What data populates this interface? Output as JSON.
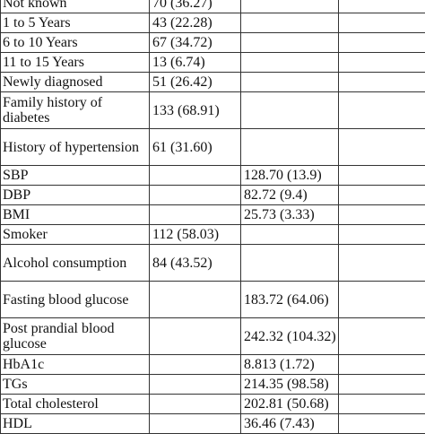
{
  "table": {
    "rows": [
      {
        "label": "Not known",
        "n": "70 (36.27)",
        "mean": "",
        "extra": "",
        "tall": false
      },
      {
        "label": "1 to 5 Years",
        "n": "43 (22.28)",
        "mean": "",
        "extra": "",
        "tall": false
      },
      {
        "label": "6 to 10 Years",
        "n": "67 (34.72)",
        "mean": "",
        "extra": "",
        "tall": false
      },
      {
        "label": "11 to 15 Years",
        "n": "13 (6.74)",
        "mean": "",
        "extra": "",
        "tall": false
      },
      {
        "label": "Newly diagnosed",
        "n": "51 (26.42)",
        "mean": "",
        "extra": "",
        "tall": false
      },
      {
        "label": "Family history of diabetes",
        "n": "133 (68.91)",
        "mean": "",
        "extra": "",
        "tall": true
      },
      {
        "label": "History of hypertension",
        "n": "61 (31.60)",
        "mean": "",
        "extra": "",
        "tall": true
      },
      {
        "label": "SBP",
        "n": "",
        "mean": "128.70 (13.9)",
        "extra": "",
        "tall": false
      },
      {
        "label": "DBP",
        "n": "",
        "mean": "82.72 (9.4)",
        "extra": "",
        "tall": false
      },
      {
        "label": "BMI",
        "n": "",
        "mean": "25.73 (3.33)",
        "extra": "",
        "tall": false
      },
      {
        "label": "Smoker",
        "n": "112 (58.03)",
        "mean": "",
        "extra": "",
        "tall": false
      },
      {
        "label": "Alcohol consumption",
        "n": "84 (43.52)",
        "mean": "",
        "extra": "",
        "tall": true
      },
      {
        "label": "Fasting blood glucose",
        "n": "",
        "mean": "183.72 (64.06)",
        "extra": "",
        "tall": true
      },
      {
        "label": "Post prandial blood glucose",
        "n": "",
        "mean": "242.32 (104.32)",
        "extra": "",
        "tall": true
      },
      {
        "label": "HbA1c",
        "n": "",
        "mean": "8.813 (1.72)",
        "extra": "",
        "tall": false
      },
      {
        "label": "TGs",
        "n": "",
        "mean": "214.35 (98.58)",
        "extra": "",
        "tall": false
      },
      {
        "label": "Total cholesterol",
        "n": "",
        "mean": "202.81 (50.68)",
        "extra": "",
        "tall": false
      },
      {
        "label": "HDL",
        "n": "",
        "mean": "36.46 (7.43)",
        "extra": "",
        "tall": false
      }
    ]
  }
}
